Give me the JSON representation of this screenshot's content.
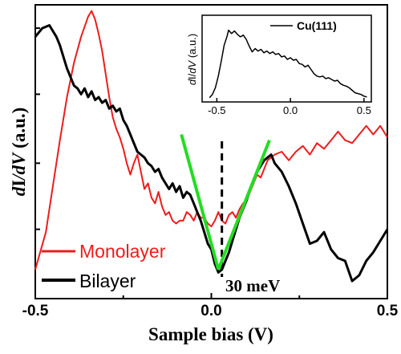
{
  "chart_data": [
    {
      "type": "line",
      "xlabel": "Sample bias (V)",
      "ylabel": "dI/dV (a.u.)",
      "ylabel_parts": [
        "d",
        "I",
        "/d",
        "V",
        " (a.u.)"
      ],
      "xlim": [
        -0.5,
        0.5
      ],
      "ylim": [
        0,
        10
      ],
      "x_ticks": [
        -0.5,
        0.0,
        0.5
      ],
      "x_tick_labels": [
        "-0.5",
        "0.0",
        "0.5"
      ],
      "legend_position": "bottom-left",
      "series": [
        {
          "name": "Monolayer",
          "color": "#ee1c1c",
          "x": [
            -0.5,
            -0.47,
            -0.45,
            -0.43,
            -0.41,
            -0.39,
            -0.37,
            -0.35,
            -0.34,
            -0.33,
            -0.32,
            -0.31,
            -0.3,
            -0.29,
            -0.28,
            -0.27,
            -0.26,
            -0.25,
            -0.24,
            -0.23,
            -0.22,
            -0.21,
            -0.2,
            -0.19,
            -0.18,
            -0.17,
            -0.16,
            -0.15,
            -0.14,
            -0.13,
            -0.12,
            -0.11,
            -0.1,
            -0.09,
            -0.08,
            -0.07,
            -0.06,
            -0.05,
            -0.04,
            -0.03,
            -0.02,
            -0.01,
            0.0,
            0.01,
            0.02,
            0.03,
            0.04,
            0.05,
            0.06,
            0.07,
            0.08,
            0.09,
            0.1,
            0.11,
            0.12,
            0.13,
            0.14,
            0.15,
            0.16,
            0.18,
            0.2,
            0.22,
            0.24,
            0.26,
            0.28,
            0.3,
            0.32,
            0.34,
            0.36,
            0.38,
            0.4,
            0.42,
            0.44,
            0.46,
            0.48,
            0.5
          ],
          "y": [
            0.9,
            2.2,
            3.8,
            5.4,
            6.9,
            8.1,
            9.0,
            9.7,
            9.9,
            9.6,
            9.1,
            8.5,
            7.7,
            6.9,
            6.2,
            5.8,
            5.5,
            5.1,
            4.6,
            4.2,
            4.6,
            4.9,
            4.3,
            3.7,
            3.9,
            3.4,
            3.2,
            3.6,
            3.1,
            2.8,
            2.9,
            2.6,
            2.5,
            2.6,
            2.6,
            2.9,
            2.8,
            2.6,
            2.9,
            2.7,
            2.7,
            2.5,
            2.4,
            2.6,
            2.9,
            2.6,
            2.5,
            2.8,
            2.9,
            2.7,
            3.0,
            3.2,
            3.3,
            3.6,
            3.9,
            4.2,
            4.1,
            4.4,
            4.7,
            4.9,
            5.0,
            4.7,
            5.0,
            5.2,
            4.9,
            5.3,
            5.1,
            5.4,
            5.7,
            5.4,
            5.3,
            5.6,
            5.9,
            5.6,
            5.9,
            5.5
          ]
        },
        {
          "name": "Bilayer",
          "color": "#000000",
          "x": [
            -0.5,
            -0.48,
            -0.46,
            -0.45,
            -0.44,
            -0.43,
            -0.42,
            -0.41,
            -0.4,
            -0.39,
            -0.38,
            -0.37,
            -0.36,
            -0.35,
            -0.34,
            -0.33,
            -0.32,
            -0.31,
            -0.3,
            -0.29,
            -0.28,
            -0.27,
            -0.26,
            -0.25,
            -0.24,
            -0.23,
            -0.22,
            -0.21,
            -0.2,
            -0.19,
            -0.18,
            -0.17,
            -0.16,
            -0.15,
            -0.14,
            -0.13,
            -0.12,
            -0.11,
            -0.1,
            -0.09,
            -0.08,
            -0.07,
            -0.06,
            -0.05,
            -0.04,
            -0.03,
            -0.02,
            -0.01,
            0.0,
            0.01,
            0.02,
            0.03,
            0.04,
            0.05,
            0.06,
            0.07,
            0.08,
            0.09,
            0.1,
            0.11,
            0.12,
            0.13,
            0.14,
            0.15,
            0.16,
            0.17,
            0.18,
            0.2,
            0.22,
            0.24,
            0.26,
            0.28,
            0.3,
            0.32,
            0.34,
            0.36,
            0.38,
            0.4,
            0.42,
            0.44,
            0.46,
            0.48,
            0.5
          ],
          "y": [
            9.0,
            9.3,
            9.4,
            9.2,
            9.0,
            8.7,
            8.3,
            7.9,
            7.6,
            7.3,
            7.2,
            7.0,
            7.2,
            6.9,
            7.1,
            6.8,
            6.9,
            6.7,
            6.8,
            6.5,
            6.6,
            6.4,
            6.5,
            6.1,
            5.9,
            5.6,
            5.3,
            5.0,
            4.9,
            4.8,
            4.6,
            4.5,
            4.3,
            4.4,
            4.1,
            3.9,
            3.7,
            3.9,
            3.6,
            3.8,
            3.4,
            3.6,
            3.5,
            3.2,
            2.9,
            2.6,
            2.2,
            1.8,
            1.6,
            1.1,
            0.8,
            0.9,
            1.2,
            1.5,
            1.9,
            2.3,
            2.7,
            3.0,
            3.3,
            3.7,
            4.0,
            4.3,
            4.5,
            4.7,
            4.8,
            4.9,
            4.6,
            4.3,
            3.8,
            3.2,
            2.5,
            1.8,
            1.9,
            2.2,
            1.6,
            1.3,
            1.2,
            0.5,
            0.7,
            1.2,
            1.5,
            1.9,
            2.3
          ]
        }
      ],
      "annotations": {
        "gap_text": "30 meV",
        "gap_line_x": 0.03,
        "fit_line_color": "#22dd22",
        "fit_left": {
          "x": [
            -0.085,
            0.02
          ],
          "y": [
            5.6,
            0.9
          ]
        },
        "fit_right": {
          "x": [
            0.02,
            0.165
          ],
          "y": [
            0.9,
            5.4
          ]
        }
      }
    },
    {
      "type": "line",
      "role": "inset",
      "ylabel": "dI/dV (a.u.)",
      "ylabel_parts": [
        "d",
        "I",
        "/",
        "dV",
        " (a.u.)"
      ],
      "xlim": [
        -0.6,
        0.55
      ],
      "ylim": [
        0,
        10
      ],
      "x_ticks": [
        -0.5,
        0.0,
        0.5
      ],
      "x_tick_labels": [
        "-0.5",
        "0.0",
        "0.5"
      ],
      "legend_position": "top-right",
      "series": [
        {
          "name": "Cu(111)",
          "color": "#000000",
          "x": [
            -0.55,
            -0.53,
            -0.51,
            -0.49,
            -0.47,
            -0.45,
            -0.43,
            -0.42,
            -0.41,
            -0.4,
            -0.38,
            -0.36,
            -0.34,
            -0.32,
            -0.3,
            -0.28,
            -0.26,
            -0.24,
            -0.22,
            -0.2,
            -0.18,
            -0.16,
            -0.14,
            -0.12,
            -0.1,
            -0.08,
            -0.06,
            -0.04,
            -0.02,
            0.0,
            0.02,
            0.04,
            0.06,
            0.08,
            0.1,
            0.12,
            0.14,
            0.16,
            0.18,
            0.2,
            0.22,
            0.24,
            0.26,
            0.28,
            0.3,
            0.32,
            0.34,
            0.36,
            0.38,
            0.4,
            0.42,
            0.44,
            0.46,
            0.48,
            0.5,
            0.52
          ],
          "y": [
            0.4,
            0.8,
            1.6,
            3.0,
            4.8,
            6.7,
            7.8,
            8.5,
            8.3,
            8.1,
            8.4,
            8.0,
            7.7,
            7.9,
            7.4,
            6.6,
            5.9,
            6.3,
            6.0,
            6.2,
            5.8,
            6.0,
            5.7,
            5.9,
            5.6,
            5.7,
            5.3,
            5.4,
            5.0,
            5.2,
            4.9,
            5.0,
            4.5,
            4.4,
            4.1,
            4.3,
            3.8,
            3.3,
            3.0,
            2.9,
            3.0,
            2.7,
            2.8,
            2.6,
            2.4,
            2.5,
            2.1,
            1.9,
            1.8,
            1.6,
            1.3,
            1.0,
            0.9,
            0.8,
            0.6,
            0.5
          ]
        }
      ]
    }
  ]
}
